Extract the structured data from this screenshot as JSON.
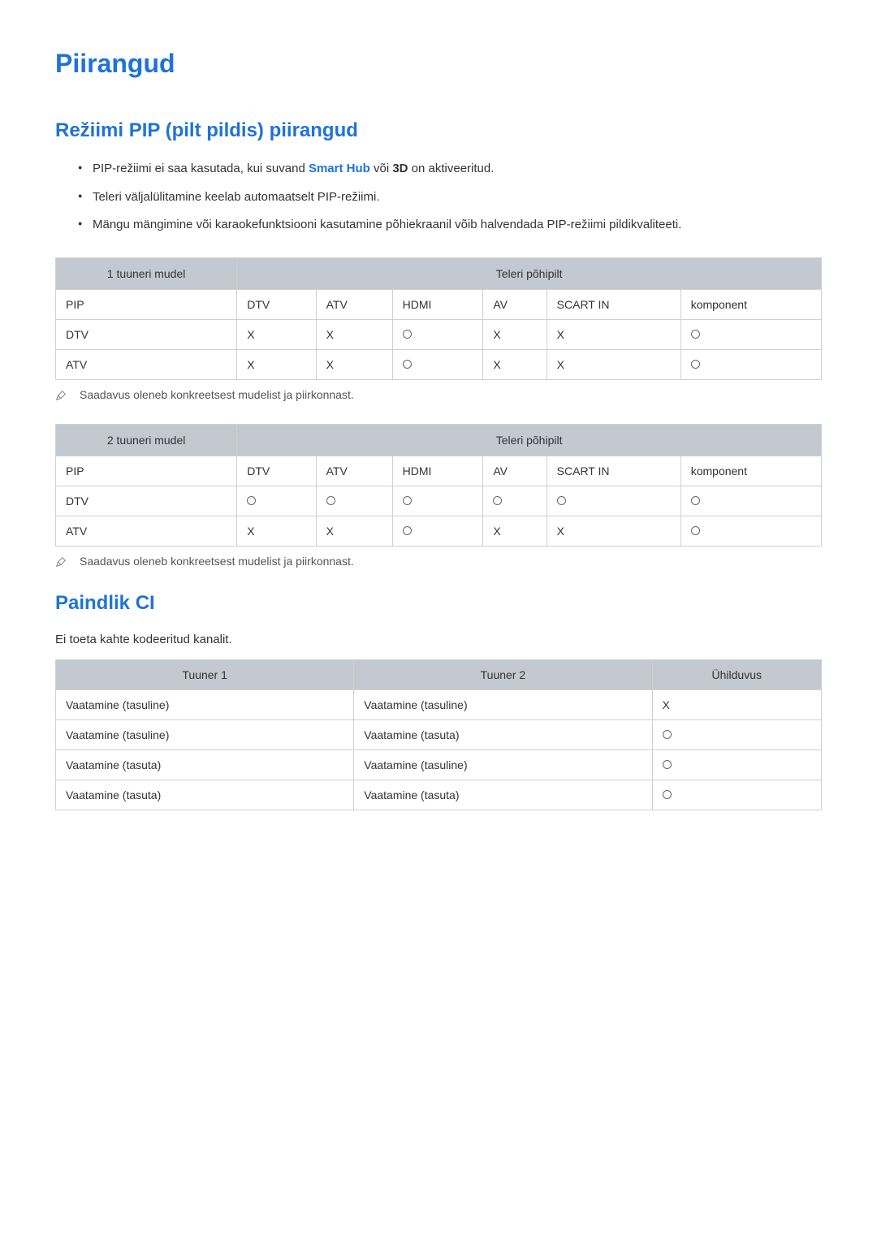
{
  "colors": {
    "heading": "#1e73d8",
    "body_text": "#333333",
    "table_header_bg": "#c4c8d0",
    "table_border": "#d0d0d0",
    "note_text": "#555555",
    "link": "#1e73d8"
  },
  "h1": "Piirangud",
  "section1": {
    "h2": "Režiimi PIP (pilt pildis) piirangud",
    "bullet1_pre": "PIP-režiimi ei saa kasutada, kui suvand ",
    "bullet1_link": "Smart Hub",
    "bullet1_mid": " või ",
    "bullet1_bold": "3D",
    "bullet1_post": " on aktiveeritud.",
    "bullet2": "Teleri väljalülitamine keelab automaatselt PIP-režiimi.",
    "bullet3": "Mängu mängimine või karaokefunktsiooni kasutamine põhiekraanil võib halvendada PIP-režiimi pildikvaliteeti."
  },
  "table1": {
    "corner_header": "1 tuuneri mudel",
    "main_header": "Teleri põhipilt",
    "columns": [
      "PIP",
      "DTV",
      "ATV",
      "HDMI",
      "AV",
      "SCART IN",
      "komponent"
    ],
    "rows": [
      [
        "DTV",
        "X",
        "X",
        "O",
        "X",
        "X",
        "O"
      ],
      [
        "ATV",
        "X",
        "X",
        "O",
        "X",
        "X",
        "O"
      ]
    ]
  },
  "note1": "Saadavus oleneb konkreetsest mudelist ja piirkonnast.",
  "table2": {
    "corner_header": "2 tuuneri mudel",
    "main_header": "Teleri põhipilt",
    "columns": [
      "PIP",
      "DTV",
      "ATV",
      "HDMI",
      "AV",
      "SCART IN",
      "komponent"
    ],
    "rows": [
      [
        "DTV",
        "O",
        "O",
        "O",
        "O",
        "O",
        "O"
      ],
      [
        "ATV",
        "X",
        "X",
        "O",
        "X",
        "X",
        "O"
      ]
    ]
  },
  "note2": "Saadavus oleneb konkreetsest mudelist ja piirkonnast.",
  "section2": {
    "h2": "Paindlik CI",
    "body": "Ei toeta kahte kodeeritud kanalit."
  },
  "table3": {
    "headers": [
      "Tuuner 1",
      "Tuuner 2",
      "Ühilduvus"
    ],
    "rows": [
      [
        "Vaatamine (tasuline)",
        "Vaatamine (tasuline)",
        "X"
      ],
      [
        "Vaatamine (tasuline)",
        "Vaatamine (tasuta)",
        "O"
      ],
      [
        "Vaatamine (tasuta)",
        "Vaatamine (tasuline)",
        "O"
      ],
      [
        "Vaatamine (tasuta)",
        "Vaatamine (tasuta)",
        "O"
      ]
    ]
  }
}
